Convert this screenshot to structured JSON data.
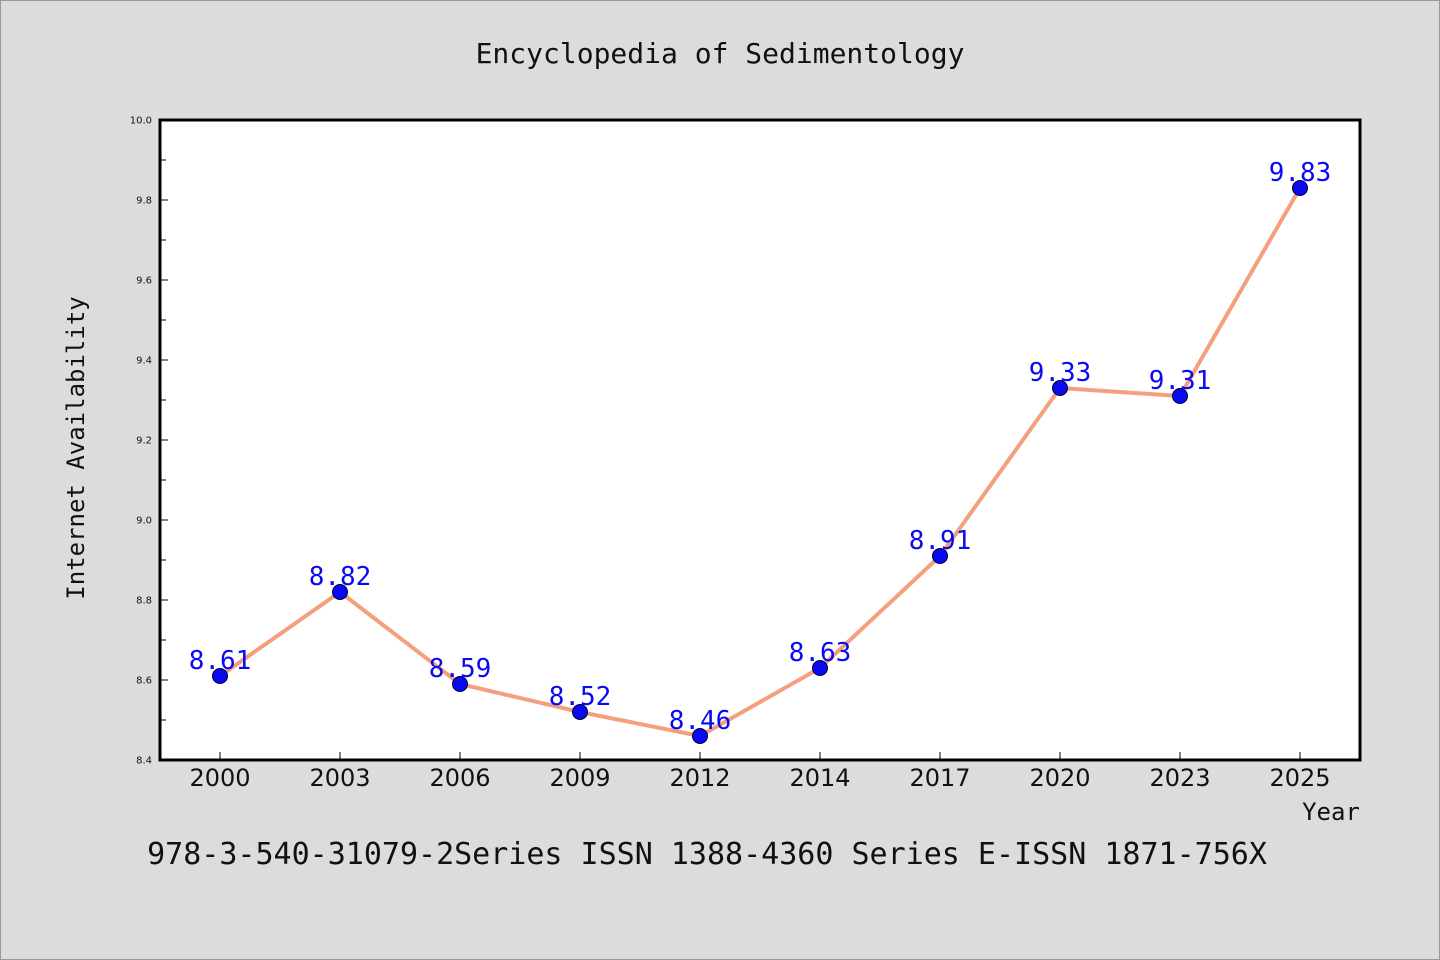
{
  "chart_data": {
    "type": "line",
    "title": "Encyclopedia of Sedimentology",
    "xlabel": "Year",
    "ylabel": "Internet Availability",
    "categories": [
      "2000",
      "2003",
      "2006",
      "2009",
      "2012",
      "2014",
      "2017",
      "2020",
      "2023",
      "2025"
    ],
    "series": [
      {
        "values": [
          8.61,
          8.82,
          8.59,
          8.52,
          8.46,
          8.63,
          8.91,
          9.33,
          9.31,
          9.83
        ],
        "data_labels": [
          "8.61",
          "8.82",
          "8.59",
          "8.52",
          "8.46",
          "8.63",
          "8.91",
          "9.33",
          "9.31",
          "9.83"
        ]
      }
    ],
    "ylim": [
      8.4,
      10.0
    ],
    "yticks": [
      "8.4",
      "8.6",
      "8.8",
      "9.0",
      "9.2",
      "9.4",
      "9.6",
      "9.8",
      "10.0"
    ],
    "grid": false,
    "line_color": "#f4a07e",
    "marker_color": "#0a0af0",
    "label_color": "#0a0af0",
    "background_color": "#dcdcdc",
    "plot_background_color": "#ffffff"
  },
  "footer": {
    "text": "978-3-540-31079-2Series ISSN 1388-4360 Series E-ISSN 1871-756X"
  }
}
